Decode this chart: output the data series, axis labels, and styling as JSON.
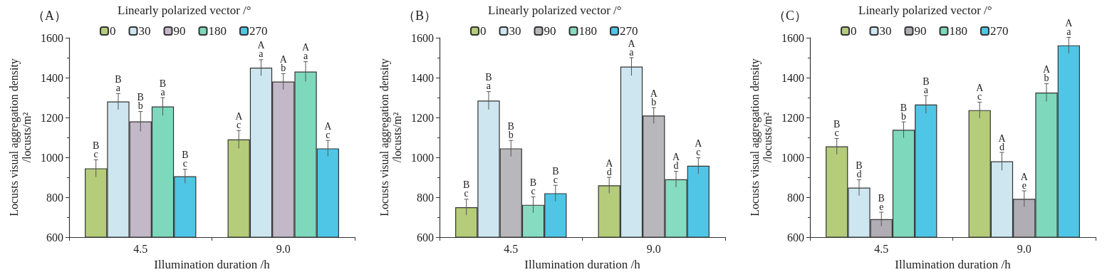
{
  "chart_data": [
    {
      "type": "bar",
      "title": "（A）",
      "legend_title": "Linearly polarized vector /°",
      "xlabel": "Illumination duration /h",
      "ylabel": "Locusts visual aggregation density\n/locusts/m²",
      "categories": [
        "4.5",
        "9.0"
      ],
      "ylim": [
        600,
        1600
      ],
      "yticks": [
        600,
        800,
        1000,
        1200,
        1400,
        1600
      ],
      "grid": false,
      "legend": "top",
      "series": [
        {
          "name": "0",
          "color": "#b5cc7a",
          "values": [
            945,
            1090
          ],
          "errors": [
            43,
            45
          ],
          "value_labels": [
            "B\nc",
            "A\nc"
          ]
        },
        {
          "name": "30",
          "color": "#cde6f0",
          "values": [
            1280,
            1450
          ],
          "errors": [
            40,
            40
          ],
          "value_labels": [
            "B\na",
            "A\na"
          ]
        },
        {
          "name": "90",
          "color": "#c2b8c8",
          "values": [
            1180,
            1380
          ],
          "errors": [
            50,
            40
          ],
          "value_labels": [
            "B\nb",
            "A\nb"
          ]
        },
        {
          "name": "180",
          "color": "#7ed8bb",
          "values": [
            1255,
            1430
          ],
          "errors": [
            45,
            50
          ],
          "value_labels": [
            "B\na",
            "A\na"
          ]
        },
        {
          "name": "270",
          "color": "#4fc6e6",
          "values": [
            905,
            1045
          ],
          "errors": [
            35,
            40
          ],
          "value_labels": [
            "B\nc",
            "A\nc"
          ]
        }
      ]
    },
    {
      "type": "bar",
      "title": "（B）",
      "legend_title": "Linearly polarized vector /°",
      "xlabel": "Illumination duration /h",
      "ylabel": "Locusts visual aggregation density\n/locusts/m²",
      "categories": [
        "4.5",
        "9.0"
      ],
      "ylim": [
        600,
        1600
      ],
      "yticks": [
        600,
        800,
        1000,
        1200,
        1400,
        1600
      ],
      "grid": false,
      "legend": "top",
      "series": [
        {
          "name": "0",
          "color": "#b5cc7a",
          "values": [
            750,
            860
          ],
          "errors": [
            40,
            40
          ],
          "value_labels": [
            "B\nc",
            "A\nd"
          ]
        },
        {
          "name": "30",
          "color": "#cde6f0",
          "values": [
            1285,
            1455
          ],
          "errors": [
            45,
            45
          ],
          "value_labels": [
            "B\na",
            "A\na"
          ]
        },
        {
          "name": "90",
          "color": "#b8b8bc",
          "values": [
            1045,
            1210
          ],
          "errors": [
            40,
            40
          ],
          "value_labels": [
            "B\nb",
            "A\nb"
          ]
        },
        {
          "name": "180",
          "color": "#86dcc0",
          "values": [
            762,
            890
          ],
          "errors": [
            40,
            40
          ],
          "value_labels": [
            "B\nc",
            "A\nd"
          ]
        },
        {
          "name": "270",
          "color": "#4fc6e6",
          "values": [
            820,
            958
          ],
          "errors": [
            40,
            40
          ],
          "value_labels": [
            "B\nc",
            "A\nc"
          ]
        }
      ]
    },
    {
      "type": "bar",
      "title": "（C）",
      "legend_title": "Linearly polarized vector /°",
      "xlabel": "Illumination duration /h",
      "ylabel": "Locusts visual aggregation density\n/locusts/m²",
      "categories": [
        "4.5",
        "9.0"
      ],
      "ylim": [
        600,
        1600
      ],
      "yticks": [
        600,
        800,
        1000,
        1200,
        1400,
        1600
      ],
      "grid": false,
      "legend": "top",
      "series": [
        {
          "name": "0",
          "color": "#b5cc7a",
          "values": [
            1055,
            1237
          ],
          "errors": [
            40,
            40
          ],
          "value_labels": [
            "B\nc",
            "A\nc"
          ]
        },
        {
          "name": "30",
          "color": "#cde6f0",
          "values": [
            848,
            980
          ],
          "errors": [
            40,
            45
          ],
          "value_labels": [
            "B\nd",
            "A\nd"
          ]
        },
        {
          "name": "90",
          "color": "#b0aeb4",
          "values": [
            690,
            792
          ],
          "errors": [
            35,
            40
          ],
          "value_labels": [
            "B\ne",
            "A\ne"
          ]
        },
        {
          "name": "180",
          "color": "#7ed8bb",
          "values": [
            1138,
            1325
          ],
          "errors": [
            40,
            45
          ],
          "value_labels": [
            "B\nb",
            "A\nb"
          ]
        },
        {
          "name": "270",
          "color": "#4fc6e6",
          "values": [
            1265,
            1562
          ],
          "errors": [
            45,
            40
          ],
          "value_labels": [
            "B\na",
            "A\na"
          ]
        }
      ]
    }
  ]
}
